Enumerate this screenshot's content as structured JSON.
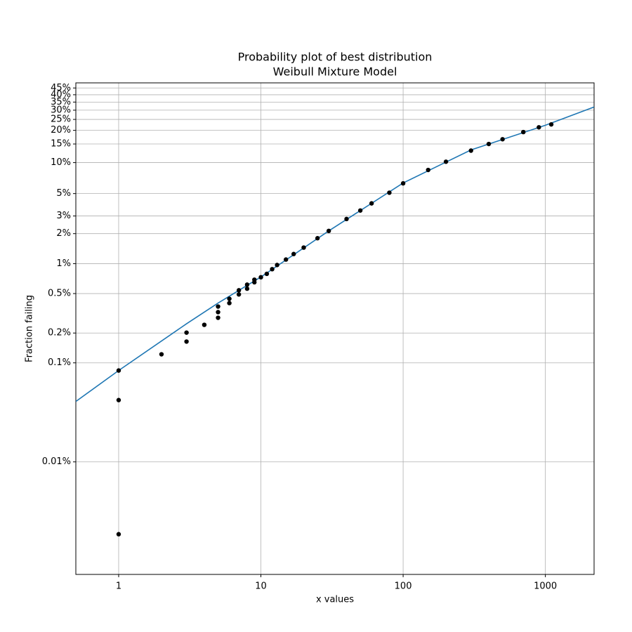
{
  "chart_data": {
    "type": "probability",
    "title": "Probability plot of best distribution",
    "subtitle": "Weibull Mixture Model",
    "xlabel": "x values",
    "ylabel": "Fraction failing",
    "xscale": "log",
    "yscale": "weibull",
    "grid": true,
    "xlim": [
      0.5,
      2200
    ],
    "ylim": [
      7.3e-06,
      0.49
    ],
    "xticks": [
      1,
      10,
      100,
      1000
    ],
    "yticks": [
      {
        "value": 0.0001,
        "label": "0.01%"
      },
      {
        "value": 0.001,
        "label": "0.1%"
      },
      {
        "value": 0.002,
        "label": "0.2%"
      },
      {
        "value": 0.005,
        "label": "0.5%"
      },
      {
        "value": 0.01,
        "label": "1%"
      },
      {
        "value": 0.02,
        "label": "2%"
      },
      {
        "value": 0.03,
        "label": "3%"
      },
      {
        "value": 0.05,
        "label": "5%"
      },
      {
        "value": 0.1,
        "label": "10%"
      },
      {
        "value": 0.15,
        "label": "15%"
      },
      {
        "value": 0.2,
        "label": "20%"
      },
      {
        "value": 0.25,
        "label": "25%"
      },
      {
        "value": 0.3,
        "label": "30%"
      },
      {
        "value": 0.35,
        "label": "35%"
      },
      {
        "value": 0.4,
        "label": "40%"
      },
      {
        "value": 0.45,
        "label": "45%"
      }
    ],
    "line": {
      "color": "#1f77b4",
      "x": [
        0.5,
        1,
        3,
        5,
        10,
        30,
        100,
        300,
        1000,
        2200
      ],
      "y": [
        0.000407,
        0.000837,
        0.00248,
        0.00401,
        0.00734,
        0.0213,
        0.0635,
        0.132,
        0.222,
        0.3187
      ]
    },
    "points": {
      "color": "#000000",
      "x": [
        1,
        1,
        1,
        2,
        3,
        3,
        4,
        5,
        5,
        5,
        6,
        6,
        7,
        7,
        8,
        8,
        9,
        9,
        10,
        11,
        12,
        13,
        15,
        17,
        20,
        25,
        30,
        40,
        50,
        60,
        80,
        100,
        150,
        200,
        300,
        400,
        500,
        700,
        900,
        1100
      ],
      "y": [
        0.000837,
        0.000421,
        1.86e-05,
        0.00122,
        0.00202,
        0.00164,
        0.00242,
        0.0037,
        0.00325,
        0.00285,
        0.00443,
        0.00401,
        0.0054,
        0.0049,
        0.00615,
        0.0056,
        0.0069,
        0.0065,
        0.0073,
        0.0079,
        0.0088,
        0.0097,
        0.011,
        0.0125,
        0.0145,
        0.018,
        0.0213,
        0.028,
        0.034,
        0.04,
        0.051,
        0.063,
        0.085,
        0.102,
        0.13,
        0.15,
        0.166,
        0.193,
        0.213,
        0.226
      ]
    }
  }
}
